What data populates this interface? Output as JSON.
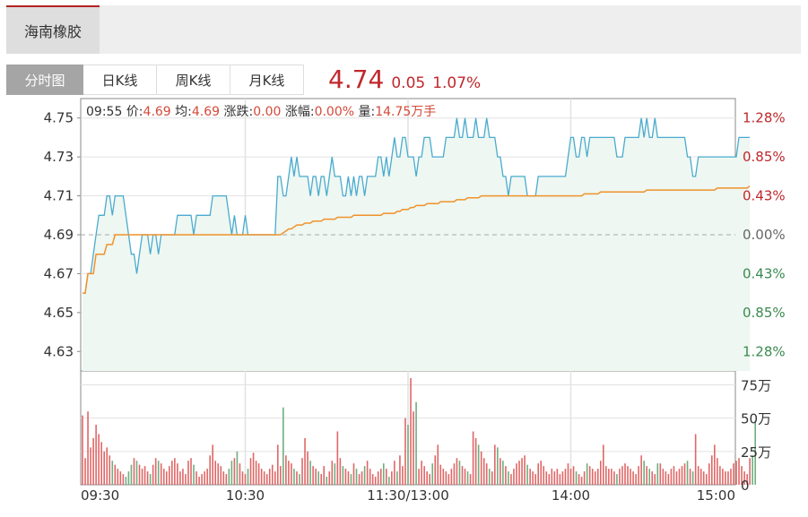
{
  "header": {
    "stock_name": "海南橡胶"
  },
  "tabs": [
    {
      "label": "分时图",
      "active": true
    },
    {
      "label": "日K线",
      "active": false
    },
    {
      "label": "周K线",
      "active": false
    },
    {
      "label": "月K线",
      "active": false
    }
  ],
  "quote": {
    "price": "4.74",
    "change": "0.05",
    "change_pct": "1.07%"
  },
  "info": {
    "time": "09:55",
    "price_label": "价:",
    "price": "4.69",
    "avg_label": "均:",
    "avg": "4.69",
    "chg_label": "涨跌:",
    "chg": "0.00",
    "amp_label": "涨幅:",
    "amp": "0.00%",
    "vol_label": "量:",
    "vol": "14.75万手"
  },
  "colors": {
    "up": "#c0282d",
    "down": "#3a8a4f",
    "price_line": "#4aabcf",
    "avg_line": "#f0922b",
    "fill": "#eef7f1",
    "grid": "#e2e2e2",
    "axis": "#888888"
  },
  "chart_data": {
    "type": "line",
    "prev_close": 4.69,
    "y_ticks_left": [
      "4.75",
      "4.73",
      "4.71",
      "4.69",
      "4.67",
      "4.65",
      "4.63"
    ],
    "y_ticks_right": [
      "1.28%",
      "0.85%",
      "0.43%",
      "0.00%",
      "0.43%",
      "0.85%",
      "1.28%"
    ],
    "ylim": [
      4.62,
      4.76
    ],
    "x_ticks": [
      "09:30",
      "10:30",
      "11:30/13:00",
      "14:00",
      "15:00"
    ],
    "volume_ticks": [
      "75万",
      "50万",
      "25万",
      "0"
    ],
    "volume_max": 80,
    "n_minutes": 241,
    "series": [
      {
        "role": "price",
        "values": [
          4.66,
          4.66,
          4.67,
          4.67,
          4.68,
          4.69,
          4.7,
          4.7,
          4.7,
          4.71,
          4.71,
          4.7,
          4.71,
          4.71,
          4.71,
          4.71,
          4.7,
          4.69,
          4.68,
          4.68,
          4.67,
          4.68,
          4.69,
          4.69,
          4.69,
          4.68,
          4.69,
          4.69,
          4.68,
          4.69,
          4.69,
          4.69,
          4.69,
          4.69,
          4.69,
          4.7,
          4.7,
          4.7,
          4.7,
          4.7,
          4.7,
          4.69,
          4.7,
          4.7,
          4.7,
          4.7,
          4.7,
          4.7,
          4.71,
          4.71,
          4.71,
          4.71,
          4.71,
          4.71,
          4.7,
          4.69,
          4.7,
          4.69,
          4.69,
          4.69,
          4.7,
          4.69,
          4.69,
          4.69,
          4.69,
          4.69,
          4.69,
          4.69,
          4.69,
          4.69,
          4.69,
          4.69,
          4.72,
          4.72,
          4.71,
          4.71,
          4.72,
          4.73,
          4.72,
          4.73,
          4.72,
          4.72,
          4.72,
          4.72,
          4.71,
          4.72,
          4.72,
          4.71,
          4.72,
          4.72,
          4.71,
          4.72,
          4.73,
          4.72,
          4.72,
          4.72,
          4.71,
          4.71,
          4.72,
          4.71,
          4.72,
          4.71,
          4.72,
          4.72,
          4.71,
          4.72,
          4.72,
          4.72,
          4.72,
          4.73,
          4.73,
          4.72,
          4.73,
          4.72,
          4.73,
          4.74,
          4.73,
          4.73,
          4.74,
          4.74,
          4.73,
          4.73,
          4.73,
          4.72,
          4.73,
          4.73,
          4.74,
          4.74,
          4.74,
          4.73,
          4.73,
          4.73,
          4.73,
          4.73,
          4.74,
          4.74,
          4.74,
          4.74,
          4.75,
          4.74,
          4.74,
          4.75,
          4.74,
          4.74,
          4.74,
          4.75,
          4.74,
          4.74,
          4.74,
          4.75,
          4.74,
          4.74,
          4.74,
          4.73,
          4.73,
          4.72,
          4.72,
          4.71,
          4.72,
          4.72,
          4.72,
          4.72,
          4.72,
          4.72,
          4.71,
          4.71,
          4.71,
          4.71,
          4.72,
          4.72,
          4.72,
          4.72,
          4.72,
          4.72,
          4.72,
          4.72,
          4.72,
          4.72,
          4.72,
          4.73,
          4.74,
          4.74,
          4.73,
          4.73,
          4.74,
          4.74,
          4.73,
          4.74,
          4.74,
          4.74,
          4.74,
          4.74,
          4.74,
          4.74,
          4.74,
          4.74,
          4.74,
          4.73,
          4.73,
          4.73,
          4.74,
          4.74,
          4.74,
          4.74,
          4.74,
          4.74,
          4.75,
          4.74,
          4.75,
          4.74,
          4.74,
          4.75,
          4.74,
          4.74,
          4.74,
          4.74,
          4.74,
          4.74,
          4.74,
          4.74,
          4.74,
          4.74,
          4.74,
          4.73,
          4.73,
          4.72,
          4.72,
          4.73,
          4.73,
          4.73,
          4.73,
          4.73,
          4.73,
          4.73,
          4.73,
          4.73,
          4.73,
          4.73,
          4.73,
          4.73,
          4.73,
          4.73,
          4.74,
          4.74,
          4.74,
          4.74,
          4.74
        ]
      },
      {
        "role": "average",
        "values": [
          4.66,
          4.66,
          4.67,
          4.67,
          4.67,
          4.68,
          4.68,
          4.68,
          4.68,
          4.685,
          4.685,
          4.685,
          4.69,
          4.69,
          4.69,
          4.69,
          4.69,
          4.69,
          4.69,
          4.69,
          4.69,
          4.69,
          4.69,
          4.69,
          4.69,
          4.69,
          4.69,
          4.69,
          4.69,
          4.69,
          4.69,
          4.69,
          4.69,
          4.69,
          4.69,
          4.69,
          4.69,
          4.69,
          4.69,
          4.69,
          4.69,
          4.69,
          4.69,
          4.69,
          4.69,
          4.69,
          4.69,
          4.69,
          4.69,
          4.69,
          4.69,
          4.69,
          4.69,
          4.69,
          4.69,
          4.69,
          4.69,
          4.69,
          4.69,
          4.69,
          4.69,
          4.69,
          4.69,
          4.69,
          4.69,
          4.69,
          4.69,
          4.69,
          4.69,
          4.69,
          4.69,
          4.69,
          4.69,
          4.69,
          4.691,
          4.692,
          4.693,
          4.693,
          4.694,
          4.695,
          4.695,
          4.695,
          4.696,
          4.696,
          4.696,
          4.697,
          4.697,
          4.697,
          4.697,
          4.698,
          4.698,
          4.698,
          4.698,
          4.698,
          4.699,
          4.699,
          4.699,
          4.699,
          4.699,
          4.699,
          4.7,
          4.7,
          4.7,
          4.7,
          4.7,
          4.7,
          4.7,
          4.7,
          4.7,
          4.7,
          4.7,
          4.701,
          4.701,
          4.701,
          4.701,
          4.701,
          4.702,
          4.702,
          4.703,
          4.703,
          4.703,
          4.704,
          4.704,
          4.705,
          4.705,
          4.705,
          4.705,
          4.706,
          4.706,
          4.706,
          4.706,
          4.706,
          4.707,
          4.707,
          4.707,
          4.707,
          4.707,
          4.707,
          4.708,
          4.708,
          4.708,
          4.708,
          4.709,
          4.709,
          4.709,
          4.709,
          4.709,
          4.71,
          4.71,
          4.71,
          4.71,
          4.71,
          4.71,
          4.71,
          4.71,
          4.71,
          4.71,
          4.71,
          4.71,
          4.71,
          4.71,
          4.71,
          4.71,
          4.71,
          4.71,
          4.71,
          4.71,
          4.71,
          4.71,
          4.71,
          4.71,
          4.71,
          4.71,
          4.71,
          4.71,
          4.71,
          4.71,
          4.71,
          4.71,
          4.71,
          4.71,
          4.71,
          4.71,
          4.71,
          4.71,
          4.711,
          4.711,
          4.711,
          4.711,
          4.711,
          4.711,
          4.712,
          4.712,
          4.712,
          4.712,
          4.712,
          4.712,
          4.712,
          4.712,
          4.712,
          4.712,
          4.712,
          4.712,
          4.712,
          4.712,
          4.712,
          4.712,
          4.712,
          4.713,
          4.713,
          4.713,
          4.713,
          4.713,
          4.713,
          4.713,
          4.713,
          4.713,
          4.713,
          4.713,
          4.713,
          4.713,
          4.713,
          4.713,
          4.713,
          4.713,
          4.713,
          4.713,
          4.713,
          4.713,
          4.713,
          4.713,
          4.713,
          4.713,
          4.713,
          4.714,
          4.714,
          4.714,
          4.714,
          4.714,
          4.714,
          4.714,
          4.714,
          4.714,
          4.714,
          4.714,
          4.714,
          4.715
        ]
      },
      {
        "role": "volume",
        "values": [
          52,
          20,
          55,
          28,
          35,
          45,
          38,
          32,
          25,
          28,
          22,
          18,
          15,
          12,
          10,
          8,
          6,
          10,
          15,
          20,
          18,
          15,
          12,
          14,
          10,
          8,
          15,
          20,
          18,
          16,
          12,
          10,
          14,
          18,
          20,
          16,
          10,
          12,
          8,
          18,
          20,
          15,
          10,
          6,
          8,
          10,
          12,
          22,
          30,
          18,
          16,
          14,
          10,
          8,
          12,
          18,
          20,
          25,
          16,
          10,
          8,
          12,
          20,
          24,
          18,
          16,
          12,
          10,
          8,
          12,
          15,
          10,
          30,
          14,
          58,
          22,
          18,
          16,
          12,
          10,
          8,
          20,
          35,
          25,
          18,
          14,
          12,
          10,
          8,
          14,
          6,
          10,
          18,
          16,
          40,
          20,
          14,
          12,
          10,
          8,
          16,
          12,
          8,
          10,
          14,
          18,
          12,
          8,
          6,
          10,
          12,
          16,
          12,
          6,
          10,
          18,
          10,
          22,
          14,
          50,
          45,
          80,
          55,
          62,
          12,
          18,
          14,
          10,
          8,
          16,
          22,
          30,
          15,
          12,
          10,
          8,
          12,
          16,
          20,
          18,
          14,
          12,
          10,
          8,
          40,
          35,
          30,
          25,
          20,
          16,
          12,
          10,
          30,
          28,
          20,
          18,
          14,
          10,
          8,
          12,
          16,
          18,
          20,
          22,
          15,
          12,
          10,
          8,
          16,
          18,
          14,
          10,
          8,
          12,
          10,
          12,
          8,
          10,
          12,
          16,
          12,
          14,
          10,
          8,
          6,
          10,
          16,
          14,
          12,
          10,
          12,
          18,
          30,
          14,
          12,
          12,
          10,
          8,
          12,
          14,
          16,
          14,
          12,
          10,
          8,
          14,
          22,
          18,
          14,
          12,
          10,
          8,
          16,
          16,
          12,
          10,
          8,
          12,
          14,
          10,
          12,
          14,
          16,
          18,
          12,
          10,
          38,
          14,
          12,
          10,
          8,
          16,
          22,
          30,
          20,
          14,
          12,
          10,
          10,
          12,
          16,
          18,
          20,
          14,
          10,
          8,
          20,
          22,
          48
        ]
      }
    ]
  }
}
